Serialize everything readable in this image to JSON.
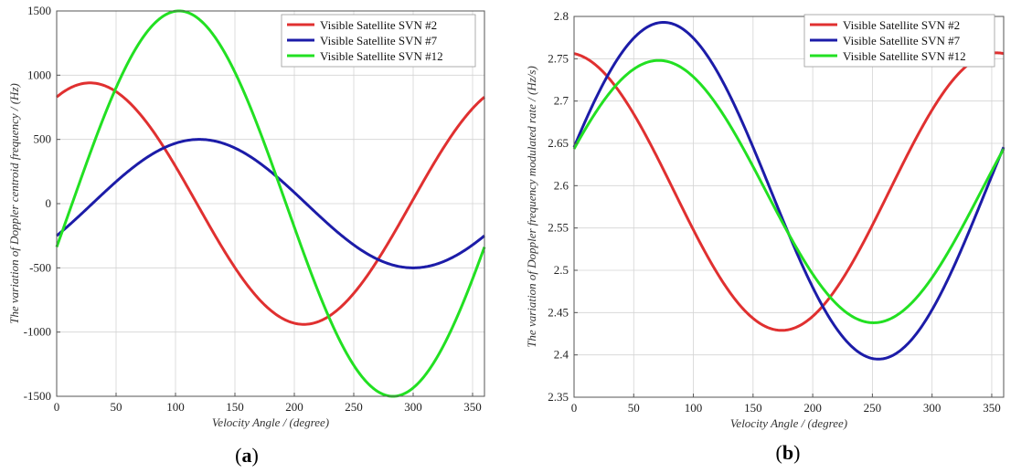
{
  "chart_data": [
    {
      "type": "line",
      "panel_label": {
        "open": "(",
        "letter": "a",
        "close": ")"
      },
      "xlabel": "Velocity Angle / (degree)",
      "ylabel": "The variation of Doppler centroid frequency / (Hz)",
      "xlim": [
        0,
        360
      ],
      "ylim": [
        -1500,
        1500
      ],
      "xticks": [
        0,
        50,
        100,
        150,
        200,
        250,
        300,
        350
      ],
      "yticks": [
        -1500,
        -1000,
        -500,
        0,
        500,
        1000,
        1500
      ],
      "grid": true,
      "legend": "top-right",
      "series": [
        {
          "name": "Visible Satellite SVN #2",
          "color": "#e03030",
          "model": {
            "offset": 0,
            "amplitude": 940,
            "peak_deg": 28
          }
        },
        {
          "name": "Visible Satellite SVN #7",
          "color": "#1c1ca8",
          "model": {
            "offset": 0,
            "amplitude": 500,
            "peak_deg": 120
          }
        },
        {
          "name": "Visible Satellite SVN #12",
          "color": "#22e022",
          "model": {
            "offset": 0,
            "amplitude": 1500,
            "peak_deg": 103
          }
        }
      ]
    },
    {
      "type": "line",
      "panel_label": {
        "open": "(",
        "letter": "b",
        "close": ")"
      },
      "xlabel": "Velocity Angle / (degree)",
      "ylabel": "The variation of Doppler frequency modulated rate / (Hz/s)",
      "xlim": [
        0,
        360
      ],
      "ylim": [
        2.35,
        2.8
      ],
      "xticks": [
        0,
        50,
        100,
        150,
        200,
        250,
        300,
        350
      ],
      "yticks": [
        2.35,
        2.4,
        2.45,
        2.5,
        2.55,
        2.6,
        2.65,
        2.7,
        2.75,
        2.8
      ],
      "ytick_labels": [
        "2.35",
        "2.4",
        "2.45",
        "2.5",
        "2.55",
        "2.6",
        "2.65",
        "2.7",
        "2.75",
        "2.8"
      ],
      "grid": true,
      "legend": "top-right",
      "series": [
        {
          "name": "Visible Satellite SVN #2",
          "color": "#e03030",
          "model": {
            "offset": 2.593,
            "amplitude": 0.164,
            "peak_deg": 354
          }
        },
        {
          "name": "Visible Satellite SVN #7",
          "color": "#1c1ca8",
          "model": {
            "offset": 2.594,
            "amplitude": 0.199,
            "peak_deg": 75
          }
        },
        {
          "name": "Visible Satellite SVN #12",
          "color": "#22e022",
          "model": {
            "offset": 2.593,
            "amplitude": 0.155,
            "peak_deg": 71
          }
        }
      ]
    }
  ]
}
